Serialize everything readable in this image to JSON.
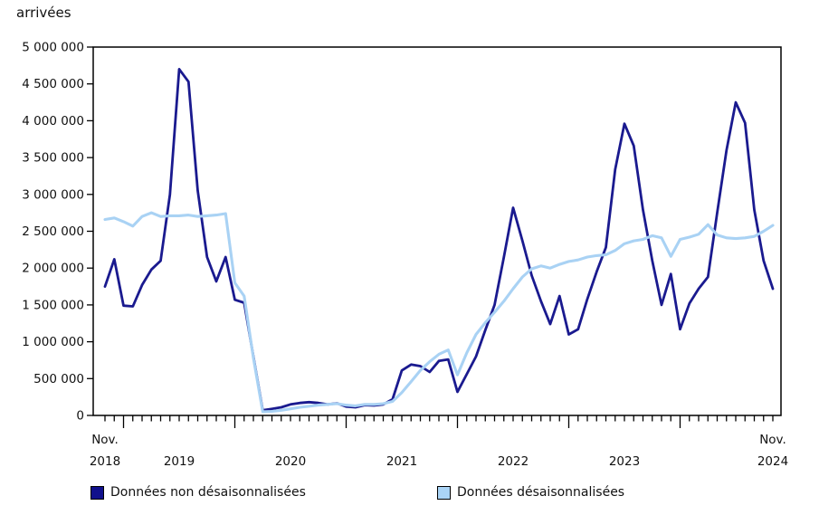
{
  "chart_data": {
    "type": "line",
    "title": "arrivées",
    "x_monthly_from": "2018-11",
    "x_monthly_to": "2024-11",
    "grid": false,
    "legend_position": "bottom",
    "y_axis": {
      "min": 0,
      "max": 5000000,
      "step": 500000,
      "thousands_separator": " "
    },
    "x_labels": [
      {
        "top": "Nov.",
        "bottom": "2018",
        "month": 0
      },
      {
        "bottom": "2019",
        "month": 8
      },
      {
        "bottom": "2020",
        "month": 20
      },
      {
        "bottom": "2021",
        "month": 32
      },
      {
        "bottom": "2022",
        "month": 44
      },
      {
        "bottom": "2023",
        "month": 56
      },
      {
        "top": "Nov.",
        "bottom": "2024",
        "month": 72
      }
    ],
    "series": [
      {
        "name": "Données non désaisonnalisées",
        "color": "#1a1a8f",
        "values": [
          1750000,
          2120000,
          1490000,
          1480000,
          1770000,
          1980000,
          2100000,
          3000000,
          4700000,
          4530000,
          3050000,
          2150000,
          1820000,
          2150000,
          1570000,
          1530000,
          800000,
          70000,
          90000,
          110000,
          150000,
          170000,
          180000,
          170000,
          150000,
          165000,
          120000,
          110000,
          140000,
          135000,
          150000,
          220000,
          610000,
          690000,
          670000,
          590000,
          740000,
          760000,
          320000,
          560000,
          800000,
          1160000,
          1500000,
          2150000,
          2820000,
          2370000,
          1900000,
          1550000,
          1240000,
          1620000,
          1100000,
          1170000,
          1580000,
          1950000,
          2280000,
          3340000,
          3960000,
          3660000,
          2790000,
          2100000,
          1500000,
          1920000,
          1170000,
          1520000,
          1720000,
          1880000,
          2750000,
          3600000,
          4250000,
          3970000,
          2790000,
          2100000,
          1720000
        ]
      },
      {
        "name": "Données désaisonnalisées",
        "color": "#a9d2f4",
        "values": [
          2660000,
          2680000,
          2630000,
          2570000,
          2700000,
          2750000,
          2700000,
          2710000,
          2710000,
          2720000,
          2700000,
          2710000,
          2720000,
          2740000,
          1800000,
          1620000,
          780000,
          50000,
          55000,
          70000,
          90000,
          110000,
          125000,
          140000,
          150000,
          160000,
          140000,
          130000,
          150000,
          150000,
          160000,
          190000,
          310000,
          460000,
          610000,
          730000,
          830000,
          890000,
          550000,
          850000,
          1100000,
          1260000,
          1400000,
          1550000,
          1720000,
          1880000,
          1990000,
          2030000,
          2000000,
          2050000,
          2090000,
          2110000,
          2150000,
          2170000,
          2180000,
          2240000,
          2330000,
          2370000,
          2390000,
          2440000,
          2410000,
          2160000,
          2390000,
          2420000,
          2460000,
          2590000,
          2450000,
          2410000,
          2400000,
          2410000,
          2430000,
          2500000,
          2580000
        ]
      }
    ]
  },
  "legend": {
    "items": [
      {
        "label": "Données non désaisonnalisées",
        "swatch_color": "#10108c"
      },
      {
        "label": "Données désaisonnalisées",
        "swatch_color": "#aad4f6"
      }
    ]
  }
}
